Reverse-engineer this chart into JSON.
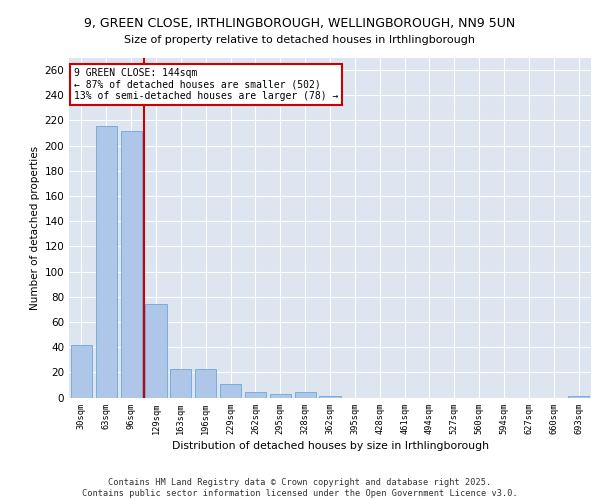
{
  "title_line1": "9, GREEN CLOSE, IRTHLINGBOROUGH, WELLINGBOROUGH, NN9 5UN",
  "title_line2": "Size of property relative to detached houses in Irthlingborough",
  "xlabel": "Distribution of detached houses by size in Irthlingborough",
  "ylabel": "Number of detached properties",
  "categories": [
    "30sqm",
    "63sqm",
    "96sqm",
    "129sqm",
    "163sqm",
    "196sqm",
    "229sqm",
    "262sqm",
    "295sqm",
    "328sqm",
    "362sqm",
    "395sqm",
    "428sqm",
    "461sqm",
    "494sqm",
    "527sqm",
    "560sqm",
    "594sqm",
    "627sqm",
    "660sqm",
    "693sqm"
  ],
  "values": [
    42,
    216,
    212,
    74,
    23,
    23,
    11,
    4,
    3,
    4,
    1,
    0,
    0,
    0,
    0,
    0,
    0,
    0,
    0,
    0,
    1
  ],
  "bar_color": "#aec6e8",
  "bar_edge_color": "#5a9fd4",
  "vline_color": "#cc0000",
  "vline_pos": 2.5,
  "annotation_text": "9 GREEN CLOSE: 144sqm\n← 87% of detached houses are smaller (502)\n13% of semi-detached houses are larger (78) →",
  "annotation_box_color": "#ffffff",
  "annotation_box_edge": "#cc0000",
  "ylim": [
    0,
    270
  ],
  "yticks": [
    0,
    20,
    40,
    60,
    80,
    100,
    120,
    140,
    160,
    180,
    200,
    220,
    240,
    260
  ],
  "background_color": "#dde6f0",
  "grid_color": "#ffffff",
  "footer_line1": "Contains HM Land Registry data © Crown copyright and database right 2025.",
  "footer_line2": "Contains public sector information licensed under the Open Government Licence v3.0."
}
